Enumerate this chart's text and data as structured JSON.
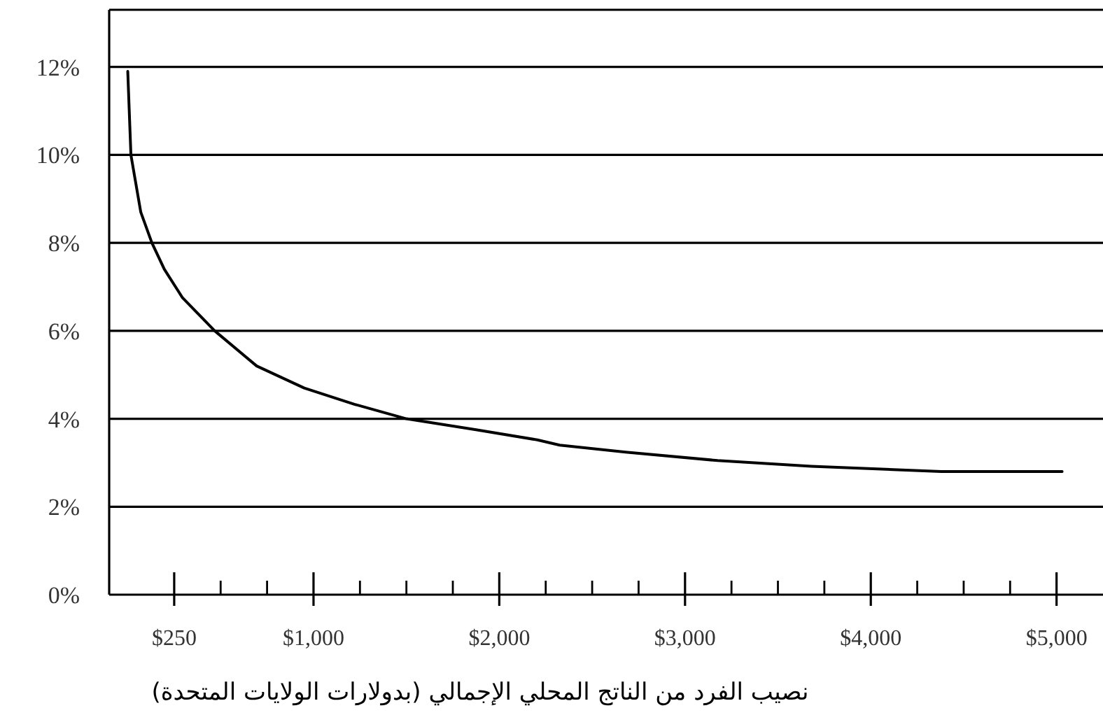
{
  "chart_data": {
    "type": "line",
    "xlabel": "نصيب الفرد من الناتج المحلي الإجمالي (بدولارات الولايات المتحدة)",
    "x": [
      0,
      17,
      70,
      130,
      197,
      295,
      468,
      694,
      950,
      1220,
      1500,
      1875,
      2205,
      2325,
      2680,
      3175,
      3680,
      4380,
      5030
    ],
    "series": [
      {
        "color": "#000000",
        "values": [
          11.9,
          10.0,
          8.7,
          8.0,
          7.4,
          6.75,
          6.0,
          5.2,
          4.7,
          4.33,
          4.0,
          3.75,
          3.52,
          3.4,
          3.24,
          3.05,
          2.92,
          2.8,
          2.8
        ]
      }
    ],
    "xlim": [
      -100,
      5250
    ],
    "ylim": [
      0,
      13.3
    ],
    "xticks": [
      {
        "value": 250,
        "label": "$250"
      },
      {
        "value": 500,
        "label": null
      },
      {
        "value": 750,
        "label": null
      },
      {
        "value": 1000,
        "label": "$1,000"
      },
      {
        "value": 1250,
        "label": null
      },
      {
        "value": 1500,
        "label": null
      },
      {
        "value": 1750,
        "label": null
      },
      {
        "value": 2000,
        "label": "$2,000"
      },
      {
        "value": 2250,
        "label": null
      },
      {
        "value": 2500,
        "label": null
      },
      {
        "value": 2750,
        "label": null
      },
      {
        "value": 3000,
        "label": "$3,000"
      },
      {
        "value": 3250,
        "label": null
      },
      {
        "value": 3500,
        "label": null
      },
      {
        "value": 3750,
        "label": null
      },
      {
        "value": 4000,
        "label": "$4,000"
      },
      {
        "value": 4250,
        "label": null
      },
      {
        "value": 4500,
        "label": null
      },
      {
        "value": 4750,
        "label": null
      },
      {
        "value": 5000,
        "label": "$5,000"
      }
    ],
    "yticks": [
      {
        "value": 0,
        "label": "0%"
      },
      {
        "value": 2,
        "label": "2%"
      },
      {
        "value": 4,
        "label": "4%"
      },
      {
        "value": 6,
        "label": "6%"
      },
      {
        "value": 8,
        "label": "8%"
      },
      {
        "value": 10,
        "label": "10%"
      },
      {
        "value": 12,
        "label": "12%"
      }
    ],
    "grid": "y",
    "line_style": "solid"
  }
}
